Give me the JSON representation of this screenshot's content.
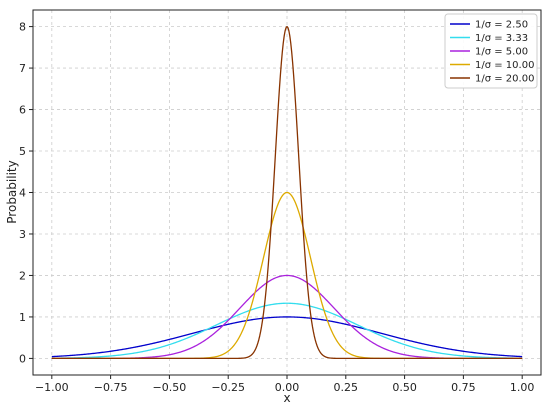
{
  "chart_data": {
    "type": "line",
    "xlabel": "x",
    "ylabel": "Probability",
    "xlim": [
      -1.08,
      1.08
    ],
    "ylim": [
      -0.4,
      8.4
    ],
    "xticks": [
      -1.0,
      -0.75,
      -0.5,
      -0.25,
      0.0,
      0.25,
      0.5,
      0.75,
      1.0
    ],
    "xtick_labels": [
      "−1.00",
      "−0.75",
      "−0.50",
      "−0.25",
      "0.00",
      "0.25",
      "0.50",
      "0.75",
      "1.00"
    ],
    "yticks": [
      0,
      1,
      2,
      3,
      4,
      5,
      6,
      7,
      8
    ],
    "ytick_labels": [
      "0",
      "1",
      "2",
      "3",
      "4",
      "5",
      "6",
      "7",
      "8"
    ],
    "x_range": [
      -1.0,
      1.0
    ],
    "grid": true,
    "legend_position": "top-right",
    "series": [
      {
        "name": "1/σ = 2.50",
        "color": "#0000cc",
        "inv_sigma": 2.5,
        "peak": 1.0
      },
      {
        "name": "1/σ = 3.33",
        "color": "#33ddee",
        "inv_sigma": 3.33,
        "peak": 1.33
      },
      {
        "name": "1/σ = 5.00",
        "color": "#aa22dd",
        "inv_sigma": 5.0,
        "peak": 2.0
      },
      {
        "name": "1/σ = 10.00",
        "color": "#ddaa00",
        "inv_sigma": 10.0,
        "peak": 4.0
      },
      {
        "name": "1/σ = 20.00",
        "color": "#883300",
        "inv_sigma": 20.0,
        "peak": 8.0
      }
    ]
  }
}
